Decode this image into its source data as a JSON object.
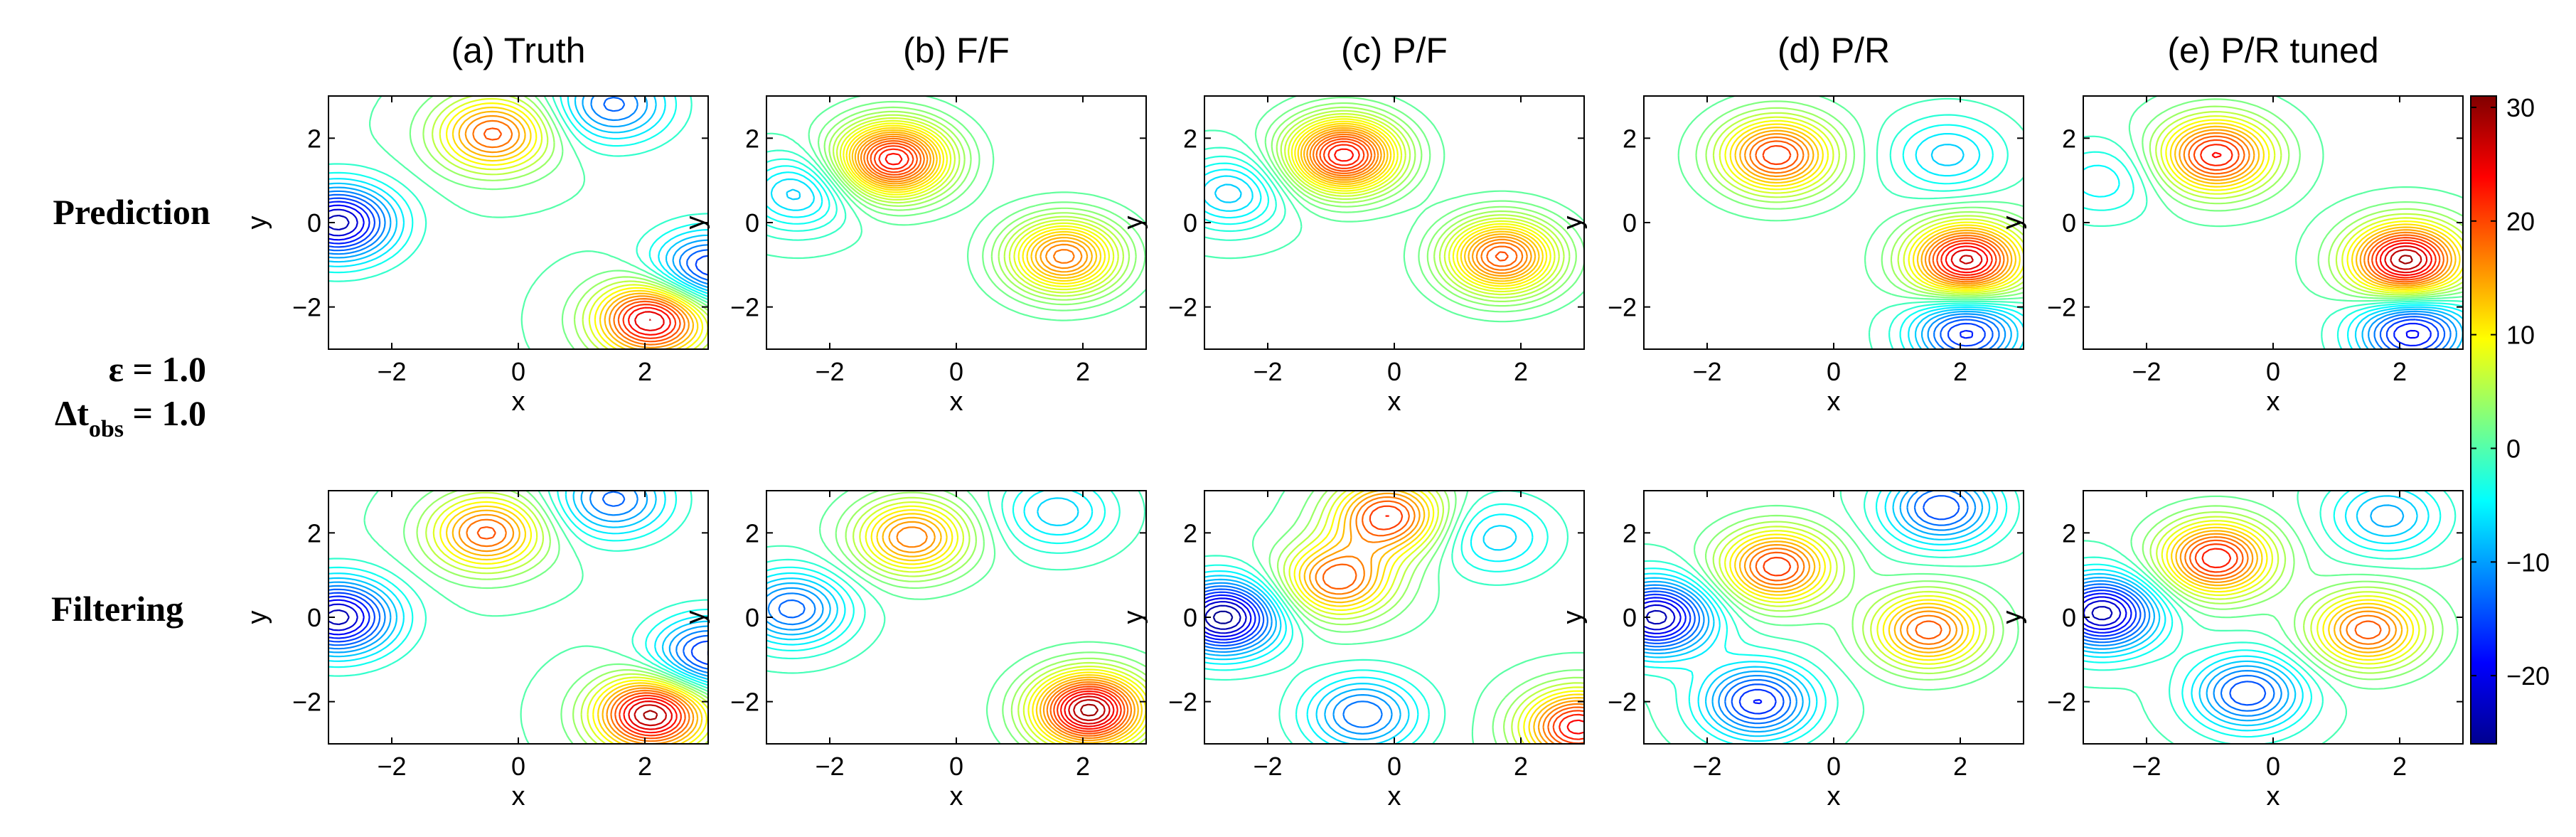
{
  "figure": {
    "row_labels": [
      "Prediction",
      "Filtering"
    ],
    "params": {
      "epsilon": "ε = 1.0",
      "dt_main": "Δt",
      "dt_sub": "obs",
      "dt_value": " = 1.0"
    }
  },
  "chart_data": {
    "type": "contour",
    "xlabel": "x",
    "ylabel": "y",
    "xlim": [
      -3,
      3
    ],
    "ylim": [
      -3,
      3
    ],
    "xticks": [
      -2,
      0,
      2
    ],
    "yticks": [
      -2,
      0,
      2
    ],
    "colorbar": {
      "colormap": "jet",
      "range": [
        -26,
        31
      ],
      "ticks": [
        30,
        20,
        10,
        0,
        -10,
        -20
      ],
      "tick_labels": [
        "30",
        "20",
        "10",
        "0",
        "−10",
        "−20"
      ]
    },
    "columns": [
      "(a) Truth",
      "(b) F/F",
      "(c) P/F",
      "(d) P/R",
      "(e) P/R tuned"
    ],
    "panels": [
      {
        "row": "Prediction",
        "column": "(a) Truth",
        "levels": [
          -24,
          30
        ],
        "features": [
          {
            "kind": "min",
            "x": -2.85,
            "y": 0.0,
            "value": -24
          },
          {
            "kind": "max",
            "x": -0.4,
            "y": 2.1,
            "value": 20
          },
          {
            "kind": "max",
            "x": 2.1,
            "y": -2.3,
            "value": 28
          },
          {
            "kind": "min",
            "x": 1.5,
            "y": 2.8,
            "value": -14
          },
          {
            "kind": "min",
            "x": 3.0,
            "y": -1.1,
            "value": -18
          }
        ]
      },
      {
        "row": "Prediction",
        "column": "(b) F/F",
        "levels": [
          -8,
          25
        ],
        "features": [
          {
            "kind": "max",
            "x": -1.0,
            "y": 1.5,
            "value": 24
          },
          {
            "kind": "max",
            "x": 1.7,
            "y": -0.8,
            "value": 18
          },
          {
            "kind": "min",
            "x": -2.5,
            "y": 0.7,
            "value": -8
          }
        ]
      },
      {
        "row": "Prediction",
        "column": "(c) P/F",
        "levels": [
          -8,
          25
        ],
        "features": [
          {
            "kind": "max",
            "x": -0.8,
            "y": 1.6,
            "value": 24
          },
          {
            "kind": "max",
            "x": 1.7,
            "y": -0.8,
            "value": 20
          },
          {
            "kind": "min",
            "x": -2.6,
            "y": 0.7,
            "value": -8
          }
        ]
      },
      {
        "row": "Prediction",
        "column": "(d) P/R",
        "levels": [
          -18,
          28
        ],
        "features": [
          {
            "kind": "max",
            "x": -0.9,
            "y": 1.6,
            "value": 22
          },
          {
            "kind": "max",
            "x": 2.1,
            "y": -0.9,
            "value": 28
          },
          {
            "kind": "min",
            "x": 2.1,
            "y": -2.6,
            "value": -18
          },
          {
            "kind": "min",
            "x": 1.8,
            "y": 1.6,
            "value": -8
          }
        ]
      },
      {
        "row": "Prediction",
        "column": "(e) P/R tuned",
        "levels": [
          -20,
          30
        ],
        "features": [
          {
            "kind": "max",
            "x": -0.9,
            "y": 1.6,
            "value": 24
          },
          {
            "kind": "max",
            "x": 2.1,
            "y": -0.9,
            "value": 30
          },
          {
            "kind": "min",
            "x": 2.2,
            "y": -2.6,
            "value": -20
          },
          {
            "kind": "min",
            "x": -2.7,
            "y": 1.0,
            "value": -6
          }
        ]
      },
      {
        "row": "Filtering",
        "column": "(a) Truth",
        "levels": [
          -24,
          30
        ],
        "features": [
          {
            "kind": "min",
            "x": -2.85,
            "y": 0.0,
            "value": -24
          },
          {
            "kind": "max",
            "x": -0.5,
            "y": 2.0,
            "value": 20
          },
          {
            "kind": "max",
            "x": 2.1,
            "y": -2.3,
            "value": 30
          },
          {
            "kind": "min",
            "x": 1.5,
            "y": 2.8,
            "value": -14
          },
          {
            "kind": "min",
            "x": 3.0,
            "y": -0.9,
            "value": -18
          }
        ]
      },
      {
        "row": "Filtering",
        "column": "(b) F/F",
        "levels": [
          -14,
          30
        ],
        "features": [
          {
            "kind": "max",
            "x": -0.7,
            "y": 1.9,
            "value": 18
          },
          {
            "kind": "max",
            "x": 2.1,
            "y": -2.2,
            "value": 30
          },
          {
            "kind": "min",
            "x": -2.6,
            "y": 0.2,
            "value": -14
          },
          {
            "kind": "min",
            "x": 1.6,
            "y": 2.5,
            "value": -8
          }
        ]
      },
      {
        "row": "Filtering",
        "column": "(c) P/F",
        "levels": [
          -26,
          25
        ],
        "features": [
          {
            "kind": "min",
            "x": -2.7,
            "y": 0.0,
            "value": -26
          },
          {
            "kind": "max",
            "x": -0.1,
            "y": 2.4,
            "value": 22
          },
          {
            "kind": "max",
            "x": -0.9,
            "y": 0.9,
            "value": 20
          },
          {
            "kind": "max",
            "x": 2.9,
            "y": -2.6,
            "value": 25
          },
          {
            "kind": "min",
            "x": -0.5,
            "y": -2.3,
            "value": -14
          },
          {
            "kind": "min",
            "x": 1.6,
            "y": 1.9,
            "value": -8
          }
        ]
      },
      {
        "row": "Filtering",
        "column": "(d) P/R",
        "levels": [
          -24,
          25
        ],
        "features": [
          {
            "kind": "min",
            "x": -2.8,
            "y": 0.0,
            "value": -24
          },
          {
            "kind": "max",
            "x": -0.9,
            "y": 1.2,
            "value": 22
          },
          {
            "kind": "max",
            "x": 1.5,
            "y": -0.3,
            "value": 20
          },
          {
            "kind": "min",
            "x": -1.2,
            "y": -2.0,
            "value": -18
          },
          {
            "kind": "min",
            "x": 1.7,
            "y": 2.6,
            "value": -16
          }
        ]
      },
      {
        "row": "Filtering",
        "column": "(e) P/R tuned",
        "levels": [
          -24,
          25
        ],
        "features": [
          {
            "kind": "min",
            "x": -2.7,
            "y": 0.1,
            "value": -24
          },
          {
            "kind": "max",
            "x": -0.9,
            "y": 1.4,
            "value": 24
          },
          {
            "kind": "max",
            "x": 1.5,
            "y": -0.3,
            "value": 20
          },
          {
            "kind": "min",
            "x": -0.4,
            "y": -1.8,
            "value": -16
          },
          {
            "kind": "min",
            "x": 1.8,
            "y": 2.4,
            "value": -10
          }
        ]
      }
    ]
  }
}
